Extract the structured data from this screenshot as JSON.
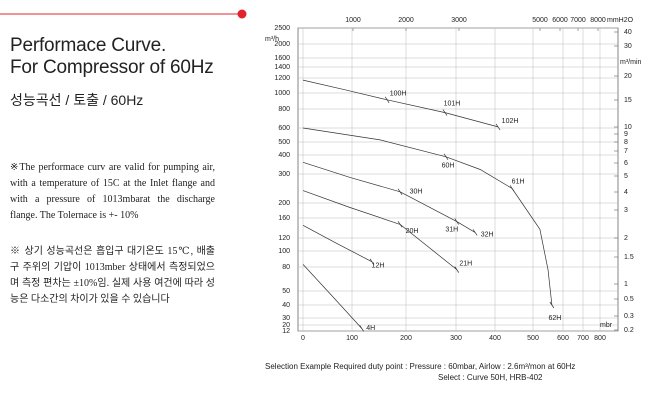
{
  "header": {
    "title_line1": "Performace Curve.",
    "title_line2": "For Compressor of 60Hz",
    "subtitle": "성능곡선 / 토출 / 60Hz"
  },
  "notes": [
    "※The performace curv are valid for pumping air, with a temperature of 15C at the Inlet flange and with a pressure of 1013mbarat the discharge flange. The Tolernace is +- 10%",
    "※ 상기 성능곡선은 흡입구 대기온도 15℃, 배출구 주위의 기압이 1013mber 상태에서 측정되었으며 측정 편차는 ±10%임. 실제 사용 여건에 따라 성능은 다소간의 차이가 있을 수 있습니다"
  ],
  "footer": [
    "Selection Example Required duty point : Pressure : 60mbar, Airlow : 2.6m³/mon at 60Hz",
    "Select : Curve 50H, HRB-402"
  ],
  "chart_data": {
    "type": "line",
    "x_label": "mbr",
    "x2_label": "mmH2O",
    "y_label": "m³/h",
    "y2_label": "m³/min",
    "xlim": [
      0,
      800
    ],
    "xticks": [
      0,
      100,
      200,
      300,
      400,
      500,
      600,
      700,
      800
    ],
    "x2ticks": [
      1000,
      2000,
      3000,
      5000,
      6000,
      7000,
      8000
    ],
    "ylim": [
      12,
      2500
    ],
    "yticks": [
      2500,
      2000,
      1600,
      1400,
      1200,
      1000,
      800,
      600,
      500,
      400,
      300,
      200,
      160,
      120,
      100,
      80,
      50,
      40,
      30,
      20,
      12
    ],
    "y2lim": [
      0.2,
      40
    ],
    "y2ticks": [
      40,
      30,
      20,
      15,
      10,
      9,
      8,
      7,
      6,
      5,
      4,
      3,
      2,
      1.5,
      1,
      0.5,
      0.3,
      0.2
    ],
    "grid": true,
    "line_color": "#333333",
    "label_color": "#d4202a",
    "series": [
      {
        "name": "100H",
        "x": [
          0,
          86,
          165
        ],
        "values": [
          1170,
          1040,
          910
        ]
      },
      {
        "name": "101H",
        "x": [
          165,
          278
        ],
        "values": [
          910,
          758
        ]
      },
      {
        "name": "102H",
        "x": [
          278,
          408
        ],
        "values": [
          758,
          610
        ]
      },
      {
        "name": "60H",
        "x": [
          0,
          152,
          280
        ],
        "values": [
          600,
          514,
          389
        ]
      },
      {
        "name": "61H",
        "x": [
          280,
          362,
          445
        ],
        "values": [
          389,
          321,
          245
        ]
      },
      {
        "name": "62H",
        "x": [
          445,
          523,
          550,
          563
        ],
        "values": [
          245,
          136,
          76,
          40
        ]
      },
      {
        "name": "30H",
        "x": [
          0,
          96,
          189
        ],
        "values": [
          358,
          286,
          234
        ]
      },
      {
        "name": "31H",
        "x": [
          189,
          302
        ],
        "values": [
          234,
          152
        ]
      },
      {
        "name": "32H",
        "x": [
          302,
          349
        ],
        "values": [
          152,
          130
        ]
      },
      {
        "name": "20H",
        "x": [
          0,
          96,
          189
        ],
        "values": [
          238,
          187,
          146
        ]
      },
      {
        "name": "21H",
        "x": [
          189,
          302
        ],
        "values": [
          146,
          76
        ]
      },
      {
        "name": "12H",
        "x": [
          0,
          67,
          137
        ],
        "values": [
          144,
          112,
          86
        ]
      },
      {
        "name": "4H",
        "x": [
          0,
          65,
          118
        ],
        "values": [
          83,
          44,
          15
        ]
      }
    ]
  }
}
